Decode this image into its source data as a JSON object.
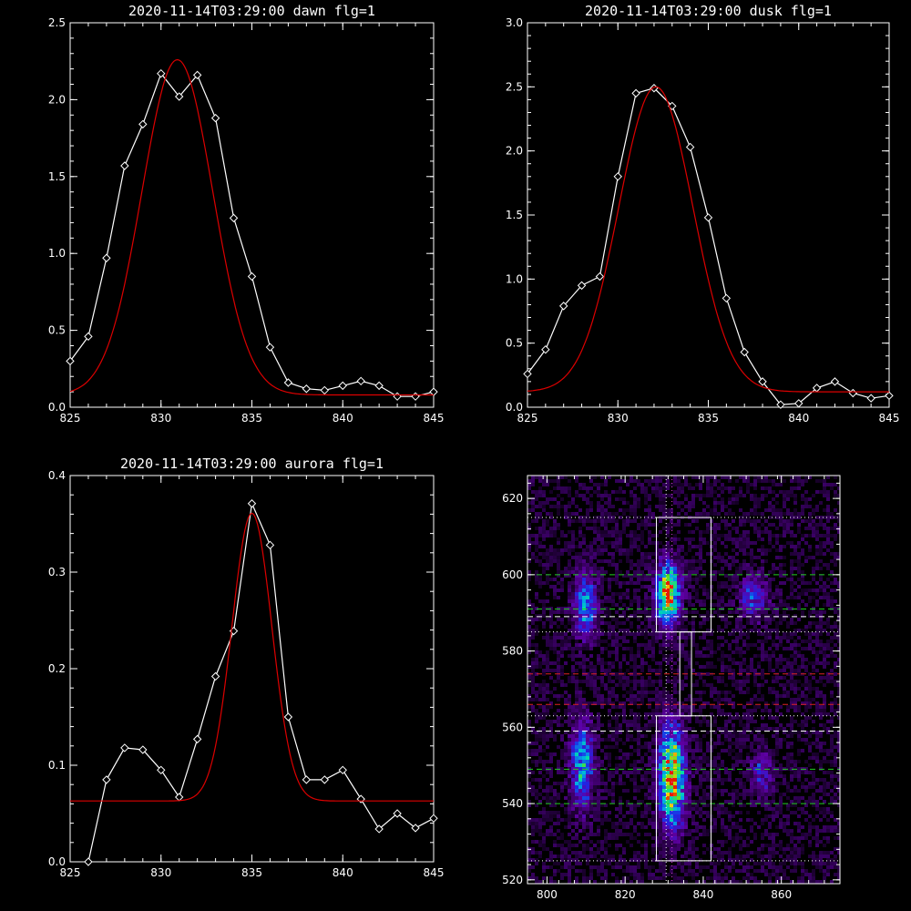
{
  "chart_data": [
    {
      "type": "line",
      "title": "2020-11-14T03:29:00 dawn flg=1",
      "xlim": [
        825,
        845
      ],
      "ylim": [
        0,
        2.5
      ],
      "xticks": [
        "825",
        "830",
        "835",
        "840",
        "845"
      ],
      "yticks": [
        "0.0",
        "0.5",
        "1.0",
        "1.5",
        "2.0",
        "2.5"
      ],
      "series": [
        {
          "color": "#ffffff",
          "markers": "diamond",
          "x": [
            825,
            826,
            827,
            828,
            829,
            830,
            831,
            832,
            833,
            834,
            835,
            836,
            837,
            838,
            839,
            840,
            841,
            842,
            843,
            844,
            845
          ],
          "y": [
            0.3,
            0.46,
            0.97,
            1.57,
            1.84,
            2.17,
            2.02,
            2.16,
            1.88,
            1.23,
            0.85,
            0.39,
            0.16,
            0.12,
            0.11,
            0.14,
            0.17,
            0.14,
            0.07,
            0.07,
            0.1
          ]
        },
        {
          "color": "#dd0000",
          "markers": "none",
          "fit": "gaussian",
          "fit_params": {
            "amplitude": 2.18,
            "center": 830.9,
            "sigma": 1.95,
            "baseline": 0.08
          }
        }
      ]
    },
    {
      "type": "line",
      "title": "2020-11-14T03:29:00 dusk flg=1",
      "xlim": [
        825,
        845
      ],
      "ylim": [
        0,
        3.0
      ],
      "xticks": [
        "825",
        "830",
        "835",
        "840",
        "845"
      ],
      "yticks": [
        "0.0",
        "0.5",
        "1.0",
        "1.5",
        "2.0",
        "2.5",
        "3.0"
      ],
      "series": [
        {
          "color": "#ffffff",
          "markers": "diamond",
          "x": [
            825,
            826,
            827,
            828,
            829,
            830,
            831,
            832,
            833,
            834,
            835,
            836,
            837,
            838,
            839,
            840,
            841,
            842,
            843,
            844,
            845
          ],
          "y": [
            0.26,
            0.45,
            0.79,
            0.95,
            1.02,
            1.8,
            2.45,
            2.49,
            2.35,
            2.03,
            1.48,
            0.85,
            0.43,
            0.2,
            0.02,
            0.03,
            0.15,
            0.2,
            0.11,
            0.07,
            0.09
          ]
        },
        {
          "color": "#dd0000",
          "markers": "none",
          "fit": "gaussian",
          "fit_params": {
            "amplitude": 2.38,
            "center": 832.1,
            "sigma": 2.05,
            "baseline": 0.12
          }
        }
      ]
    },
    {
      "type": "line",
      "title": "2020-11-14T03:29:00 aurora flg=1",
      "xlim": [
        825,
        845
      ],
      "ylim": [
        0,
        0.4
      ],
      "xticks": [
        "825",
        "830",
        "835",
        "840",
        "845"
      ],
      "yticks": [
        "0.0",
        "0.1",
        "0.2",
        "0.3",
        "0.4"
      ],
      "series": [
        {
          "color": "#ffffff",
          "markers": "diamond",
          "x": [
            826,
            827,
            828,
            829,
            830,
            831,
            832,
            833,
            834,
            835,
            836,
            837,
            838,
            839,
            840,
            841,
            842,
            843,
            844,
            845
          ],
          "y": [
            0.0,
            0.085,
            0.118,
            0.116,
            0.095,
            0.067,
            0.127,
            0.192,
            0.239,
            0.371,
            0.328,
            0.15,
            0.085,
            0.085,
            0.095,
            0.065,
            0.034,
            0.05,
            0.035,
            0.045
          ]
        },
        {
          "color": "#dd0000",
          "markers": "none",
          "fit": "gaussian",
          "fit_params": {
            "amplitude": 0.298,
            "center": 835.0,
            "sigma": 1.1,
            "baseline": 0.063
          }
        }
      ]
    },
    {
      "type": "heatmap",
      "title": "",
      "xlim": [
        795,
        875
      ],
      "ylim": [
        519,
        626
      ],
      "xticks": [
        "800",
        "820",
        "840",
        "860"
      ],
      "yticks": [
        "520",
        "540",
        "560",
        "580",
        "600",
        "620"
      ],
      "blobs": [
        {
          "x": 810,
          "y": 592,
          "sx": 2.0,
          "sy": 6.0,
          "amp": 0.55
        },
        {
          "x": 809,
          "y": 550,
          "sx": 2.0,
          "sy": 8.0,
          "amp": 0.6
        },
        {
          "x": 831,
          "y": 595,
          "sx": 2.2,
          "sy": 5.5,
          "amp": 1.0
        },
        {
          "x": 832,
          "y": 547,
          "sx": 2.3,
          "sy": 9.0,
          "amp": 1.0
        },
        {
          "x": 853,
          "y": 594,
          "sx": 2.5,
          "sy": 4.0,
          "amp": 0.4
        },
        {
          "x": 855,
          "y": 548,
          "sx": 2.0,
          "sy": 4.0,
          "amp": 0.35
        }
      ],
      "boxes": [
        {
          "x0": 828,
          "x1": 842,
          "y0": 585,
          "y1": 615,
          "color": "#ffffff"
        },
        {
          "x0": 828,
          "x1": 842,
          "y0": 525,
          "y1": 563,
          "color": "#ffffff"
        },
        {
          "x0": 834,
          "x1": 837,
          "y0": 563,
          "y1": 585,
          "color": "#ffffff"
        }
      ],
      "hlines": [
        {
          "y": 615,
          "color": "#ffffff",
          "style": "dotted"
        },
        {
          "y": 600,
          "color": "#22cc22",
          "style": "dashed"
        },
        {
          "y": 591,
          "color": "#22cc22",
          "style": "dashed"
        },
        {
          "y": 589,
          "color": "#ffffff",
          "style": "dashed"
        },
        {
          "y": 585,
          "color": "#ffffff",
          "style": "dotted"
        },
        {
          "y": 574,
          "color": "#dd2222",
          "style": "dashed"
        },
        {
          "y": 566,
          "color": "#dd2222",
          "style": "dashed"
        },
        {
          "y": 563,
          "color": "#ffffff",
          "style": "dotted"
        },
        {
          "y": 559,
          "color": "#ffffff",
          "style": "dashed"
        },
        {
          "y": 549,
          "color": "#22cc22",
          "style": "dashed"
        },
        {
          "y": 540,
          "color": "#22cc22",
          "style": "dashed"
        },
        {
          "y": 525,
          "color": "#ffffff",
          "style": "dotted"
        }
      ],
      "vlines": [
        {
          "x": 830.5,
          "color": "#ffffff",
          "style": "dotted"
        },
        {
          "x": 832,
          "color": "#dd44dd",
          "style": "dotted"
        }
      ]
    }
  ]
}
